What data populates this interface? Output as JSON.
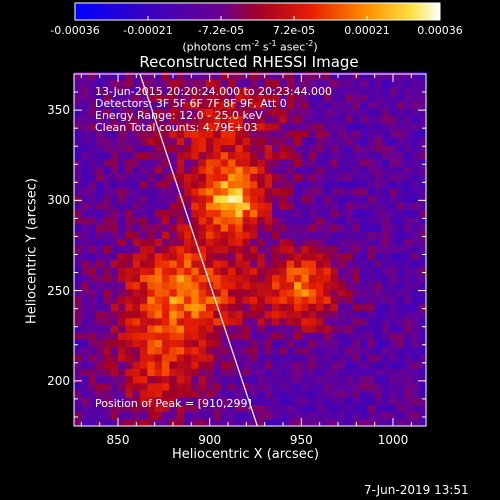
{
  "chart_data": {
    "type": "heatmap",
    "title": "Reconstructed RHESSI Image",
    "xlabel": "Heliocentric X (arcsec)",
    "ylabel": "Heliocentric Y (arcsec)",
    "xlim": [
      826,
      1018
    ],
    "ylim": [
      175,
      370
    ],
    "x_ticks": [
      "850",
      "900",
      "950",
      "1000"
    ],
    "y_ticks": [
      "200",
      "250",
      "300",
      "350"
    ],
    "colorbar": {
      "range": [
        -0.00036,
        0.00036
      ],
      "ticks": [
        "-0.00036",
        "-0.00021",
        "-7.2e-05",
        "7.2e-05",
        "0.00021",
        "0.00036"
      ],
      "label_main": "(photons cm",
      "label_exp1": "-2",
      "label_mid1": " s",
      "label_exp2": "-1",
      "label_mid2": " asec",
      "label_exp3": "-2",
      "label_end": ")"
    },
    "annotations": [
      "13-Jun-2015 20:20:24.000 to 20:23:44.000",
      "Detectors: 3F 5F 6F 7F 8F 9F, Att 0",
      "Energy Range: 12.0 - 25.0 keV",
      "Clean     Total counts: 4.79E+03"
    ],
    "peak_label": "Position of Peak = [910,299]",
    "peak": [
      910,
      299
    ],
    "sources": [
      {
        "x": 912,
        "y": 300,
        "amp": 0.00034,
        "sx": 14,
        "sy": 14
      },
      {
        "x": 885,
        "y": 250,
        "amp": 0.0003,
        "sx": 24,
        "sy": 22
      },
      {
        "x": 950,
        "y": 252,
        "amp": 0.00028,
        "sx": 16,
        "sy": 16
      },
      {
        "x": 905,
        "y": 340,
        "amp": 0.00017,
        "sx": 30,
        "sy": 22
      },
      {
        "x": 872,
        "y": 205,
        "amp": 0.00016,
        "sx": 18,
        "sy": 20
      }
    ],
    "limb_line": [
      [
        862,
        370
      ],
      [
        926,
        175
      ]
    ]
  },
  "footer": {
    "timestamp": "7-Jun-2019 13:51"
  }
}
